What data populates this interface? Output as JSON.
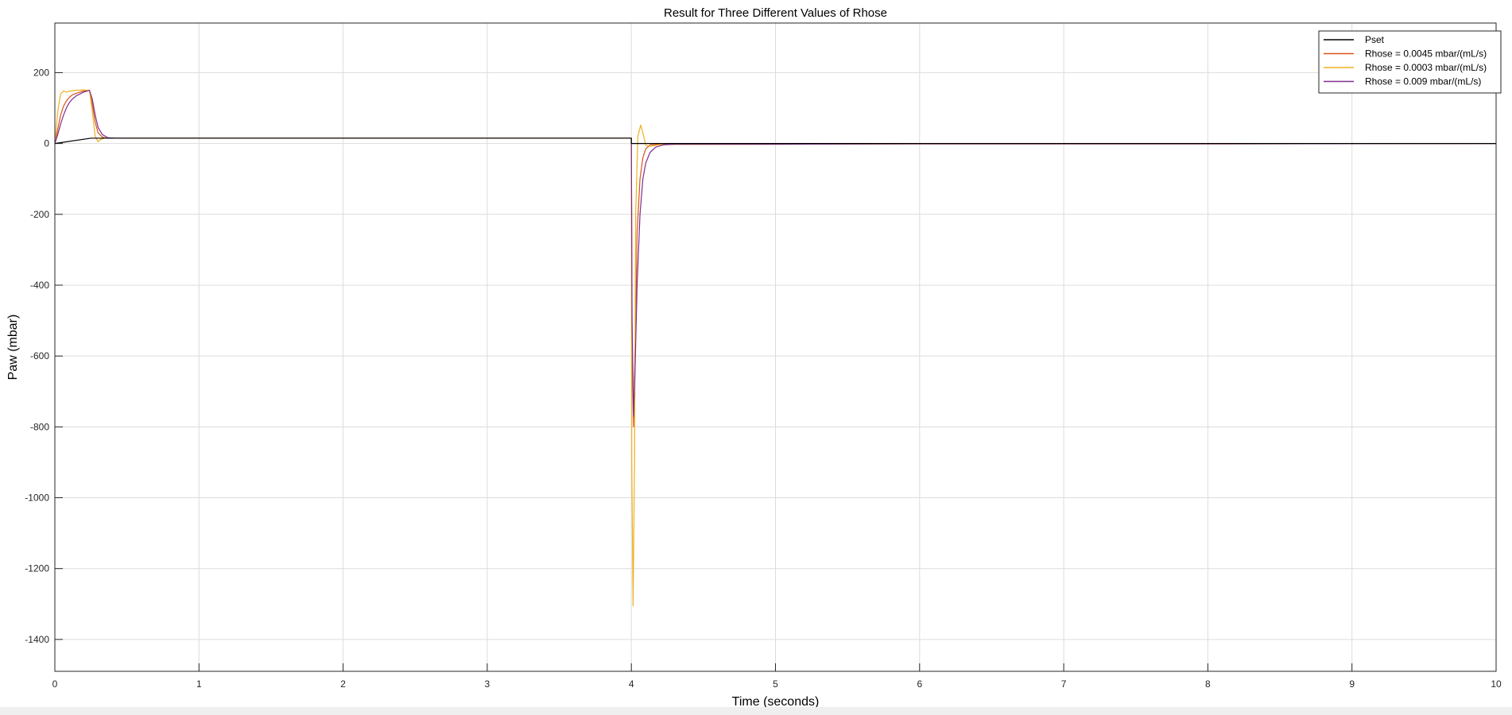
{
  "chart_data": {
    "type": "line",
    "title": "Result for Three Different Values of Rhose",
    "xlabel": "Time (seconds)",
    "ylabel": "Paw (mbar)",
    "xlim": [
      0,
      10
    ],
    "ylim": [
      -1490,
      340
    ],
    "xticks": [
      0,
      1,
      2,
      3,
      4,
      5,
      6,
      7,
      8,
      9,
      10
    ],
    "xtick_labels": [
      "0",
      "1",
      "2",
      "3",
      "4",
      "5",
      "6",
      "7",
      "8",
      "9",
      "10"
    ],
    "yticks": [
      200,
      0,
      -200,
      -400,
      -600,
      -800,
      -1000,
      -1200,
      -1400
    ],
    "ytick_labels": [
      "200",
      "0",
      "-200",
      "-400",
      "-600",
      "-800",
      "-1000",
      "-1200",
      "-1400"
    ],
    "grid": true,
    "legend_position": "top-right",
    "series": [
      {
        "name": "Pset",
        "color": "#000000",
        "points": [
          [
            0,
            0
          ],
          [
            0.25,
            15
          ],
          [
            4.0,
            15
          ],
          [
            4.0,
            0
          ],
          [
            10,
            0
          ]
        ]
      },
      {
        "name": "Rhose = 0.0045 mbar/(mL/s)",
        "color": "#d95319",
        "points": [
          [
            0,
            0
          ],
          [
            0.02,
            40
          ],
          [
            0.04,
            80
          ],
          [
            0.06,
            105
          ],
          [
            0.08,
            120
          ],
          [
            0.1,
            130
          ],
          [
            0.12,
            137
          ],
          [
            0.15,
            142
          ],
          [
            0.2,
            148
          ],
          [
            0.24,
            150
          ],
          [
            0.26,
            110
          ],
          [
            0.28,
            60
          ],
          [
            0.3,
            30
          ],
          [
            0.33,
            18
          ],
          [
            0.36,
            15
          ],
          [
            1,
            15
          ],
          [
            2,
            15
          ],
          [
            3,
            15
          ],
          [
            4.0,
            15
          ],
          [
            4.005,
            -600
          ],
          [
            4.015,
            -800
          ],
          [
            4.025,
            -600
          ],
          [
            4.04,
            -250
          ],
          [
            4.06,
            -100
          ],
          [
            4.08,
            -40
          ],
          [
            4.1,
            -15
          ],
          [
            4.13,
            -4
          ],
          [
            4.2,
            -2
          ],
          [
            5,
            -2
          ],
          [
            6,
            -1
          ],
          [
            8,
            -1
          ],
          [
            10,
            0
          ]
        ]
      },
      {
        "name": "Rhose = 0.0003 mbar/(mL/s)",
        "color": "#edb120",
        "points": [
          [
            0,
            0
          ],
          [
            0.02,
            90
          ],
          [
            0.04,
            140
          ],
          [
            0.06,
            148
          ],
          [
            0.08,
            145
          ],
          [
            0.1,
            148
          ],
          [
            0.15,
            150
          ],
          [
            0.2,
            151
          ],
          [
            0.24,
            150
          ],
          [
            0.26,
            90
          ],
          [
            0.28,
            20
          ],
          [
            0.3,
            5
          ],
          [
            0.32,
            12
          ],
          [
            0.35,
            16
          ],
          [
            0.4,
            15
          ],
          [
            1,
            15
          ],
          [
            2,
            15
          ],
          [
            3,
            15
          ],
          [
            4.0,
            15
          ],
          [
            4.003,
            -900
          ],
          [
            4.012,
            -1305
          ],
          [
            4.022,
            -900
          ],
          [
            4.03,
            -200
          ],
          [
            4.045,
            20
          ],
          [
            4.065,
            52
          ],
          [
            4.08,
            30
          ],
          [
            4.1,
            -5
          ],
          [
            4.13,
            -8
          ],
          [
            4.2,
            -3
          ],
          [
            5,
            -2
          ],
          [
            6,
            -1
          ],
          [
            8,
            -1
          ],
          [
            10,
            0
          ]
        ]
      },
      {
        "name": "Rhose = 0.009 mbar/(mL/s)",
        "color": "#7e2f8e",
        "points": [
          [
            0,
            0
          ],
          [
            0.02,
            25
          ],
          [
            0.04,
            55
          ],
          [
            0.06,
            80
          ],
          [
            0.08,
            100
          ],
          [
            0.1,
            115
          ],
          [
            0.12,
            125
          ],
          [
            0.15,
            135
          ],
          [
            0.2,
            145
          ],
          [
            0.24,
            150
          ],
          [
            0.26,
            125
          ],
          [
            0.28,
            80
          ],
          [
            0.3,
            45
          ],
          [
            0.33,
            25
          ],
          [
            0.37,
            16
          ],
          [
            0.42,
            15
          ],
          [
            1,
            15
          ],
          [
            2,
            15
          ],
          [
            3,
            15
          ],
          [
            4.0,
            15
          ],
          [
            4.005,
            -500
          ],
          [
            4.015,
            -770
          ],
          [
            4.025,
            -650
          ],
          [
            4.04,
            -400
          ],
          [
            4.06,
            -200
          ],
          [
            4.08,
            -100
          ],
          [
            4.1,
            -55
          ],
          [
            4.13,
            -25
          ],
          [
            4.17,
            -10
          ],
          [
            4.22,
            -4
          ],
          [
            4.3,
            -2
          ],
          [
            5,
            -2
          ],
          [
            6,
            -1
          ],
          [
            8,
            -1
          ],
          [
            10,
            0
          ]
        ]
      }
    ]
  }
}
